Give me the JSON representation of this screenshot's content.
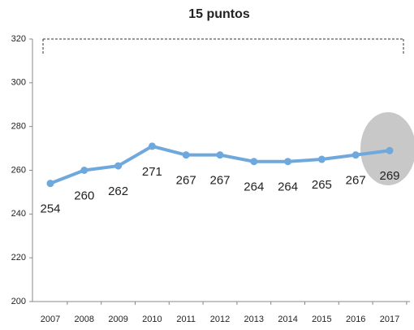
{
  "chart_data": {
    "type": "line",
    "title": "15 puntos",
    "categories": [
      "2007",
      "2008",
      "2009",
      "2010",
      "2011",
      "2012",
      "2013",
      "2014",
      "2015",
      "2016",
      "2017"
    ],
    "series": [
      {
        "color": "#6fa8dc",
        "values": [
          254,
          260,
          262,
          271,
          267,
          267,
          264,
          264,
          265,
          267,
          269
        ]
      }
    ],
    "ylim": [
      200,
      320
    ],
    "yticks": [
      200,
      220,
      240,
      260,
      280,
      300,
      320
    ]
  }
}
